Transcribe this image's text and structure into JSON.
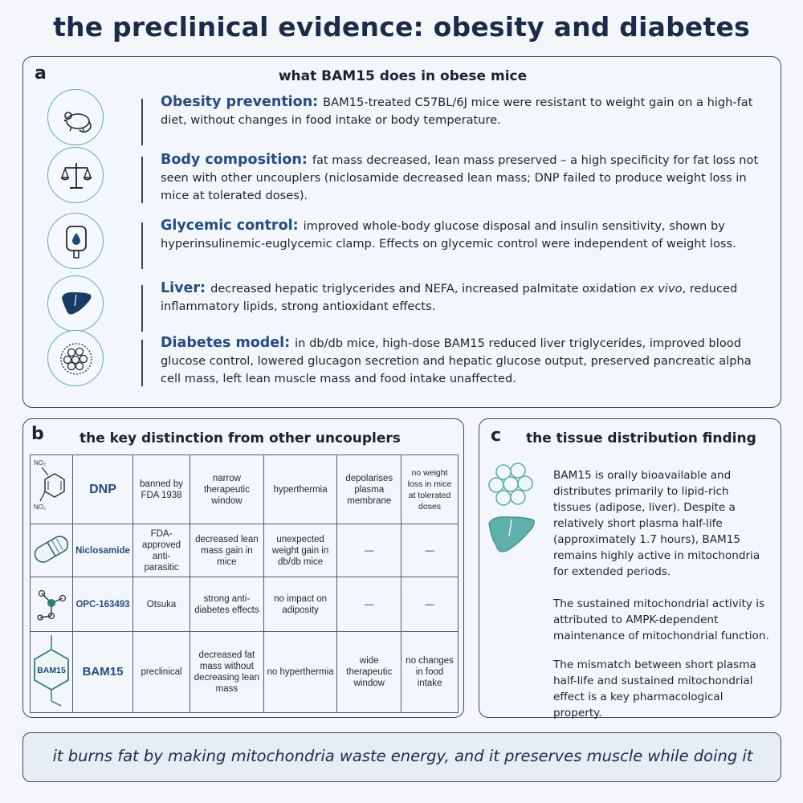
{
  "title": "the preclinical evidence: obesity and diabetes",
  "panel_a": {
    "letter": "a",
    "heading": "what BAM15 does in obese mice",
    "items": [
      {
        "icon": "mouse-icon",
        "label": "Obesity prevention:",
        "text": "BAM15-treated C57BL/6J mice were resistant to weight gain on a high-fat diet, without changes in food intake or body temperature."
      },
      {
        "icon": "balance-scale-icon",
        "label": "Body composition:",
        "text": "fat mass decreased, lean mass preserved – a high specificity for fat loss not seen with other uncouplers (niclosamide decreased lean mass; DNP failed to produce weight loss in mice at tolerated doses)."
      },
      {
        "icon": "glucose-meter-icon",
        "label": "Glycemic control:",
        "text": "improved whole-body glucose disposal and insulin sensitivity, shown by hyperinsulinemic-euglycemic clamp. Effects on glycemic control were independent of weight loss."
      },
      {
        "icon": "liver-icon",
        "label": "Liver:",
        "text_before": "decreased hepatic triglycerides and NEFA, increased palmitate oxidation",
        "text_italic": "ex vivo",
        "text_after": ", reduced inflammatory lipids, strong antioxidant effects."
      },
      {
        "icon": "cell-cluster-icon",
        "label": "Diabetes model:",
        "text": "in db/db mice, high-dose BAM15 reduced liver triglycerides, improved blood glucose control, lowered glucagon secretion and hepatic glucose output, preserved pancreatic alpha cell mass, left lean muscle mass and food intake unaffected."
      }
    ]
  },
  "panel_b": {
    "letter": "b",
    "heading": "the key distinction from other uncouplers",
    "rows": [
      {
        "icon": "dinitrophenol-structure-icon",
        "substituent_top": "NO₂",
        "substituent_bottom": "NO₂",
        "name": "DNP",
        "cells": [
          "banned by FDA 1938",
          "narrow therapeutic window",
          "hyperthermia",
          "depolarises plasma membrane",
          "no weight loss in mice at tolerated doses"
        ]
      },
      {
        "icon": "capsule-icon",
        "name": "Niclosamide",
        "cells": [
          "FDA-approved anti-parasitic",
          "decreased lean mass gain in mice",
          "unexpected weight gain in db/db mice",
          "—",
          "—"
        ]
      },
      {
        "icon": "molecule-icon",
        "name": "OPC-163493",
        "cells": [
          "Otsuka",
          "strong anti-diabetes effects",
          "no impact on adiposity",
          "—",
          "—"
        ]
      },
      {
        "icon": "bam15-hexagon-icon",
        "icon_label": "BAM15",
        "name": "BAM15",
        "cells": [
          "preclinical",
          "decreased fat mass without decreasing lean mass",
          "no hyperthermia",
          "wide therapeutic window",
          "no changes in food intake"
        ]
      }
    ]
  },
  "panel_c": {
    "letter": "c",
    "heading": "the tissue distribution finding",
    "paragraphs": [
      "BAM15 is orally bioavailable and distributes primarily to lipid-rich tissues (adipose, liver). Despite a relatively short plasma half-life (approximately 1.7 hours), BAM15 remains highly active in mitochondria for extended periods.",
      "The sustained mitochondrial activity is attributed to AMPK-dependent maintenance of mitochondrial function.",
      "The mismatch between short plasma half-life and sustained mitochondrial effect is a key pharmacological property."
    ]
  },
  "footer": "it burns fat by making mitochondria waste energy, and it preserves muscle while doing it",
  "colors": {
    "accent": "#234d86",
    "teal": "#5fb0ad",
    "border": "#3d4a5e"
  }
}
